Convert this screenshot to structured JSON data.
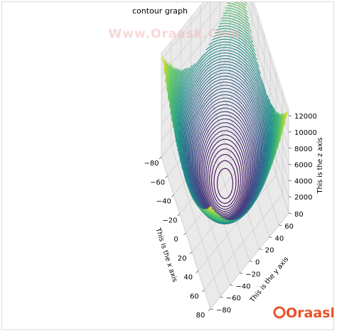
{
  "watermark": "Www.Oraask.Com",
  "logo": "Oraask",
  "colors": {
    "pane": "#eaeaea",
    "grid": "#cfcfcf",
    "colormap": [
      "#440154",
      "#3b528b",
      "#21918c",
      "#5ec962",
      "#fde725"
    ],
    "logo": "#e8512a"
  },
  "chart_data": {
    "type": "contour3d",
    "title": "contour graph",
    "function": "z = x^2 + y^2",
    "xlabel": "This is the x axis",
    "ylabel": "This is the y axis",
    "zlabel": "This is the z axis",
    "xlim": [
      -80,
      80
    ],
    "ylim": [
      -80,
      80
    ],
    "zlim": [
      0,
      12800
    ],
    "xticks": [
      -80,
      -60,
      -40,
      -20,
      0,
      20,
      40,
      60,
      80
    ],
    "yticks": [
      -80,
      -60,
      -40,
      -20,
      0,
      20,
      40,
      60,
      80
    ],
    "zticks": [
      2000,
      4000,
      6000,
      8000,
      10000,
      12000
    ],
    "levels": 70,
    "colormap": "viridis",
    "grid": true
  }
}
